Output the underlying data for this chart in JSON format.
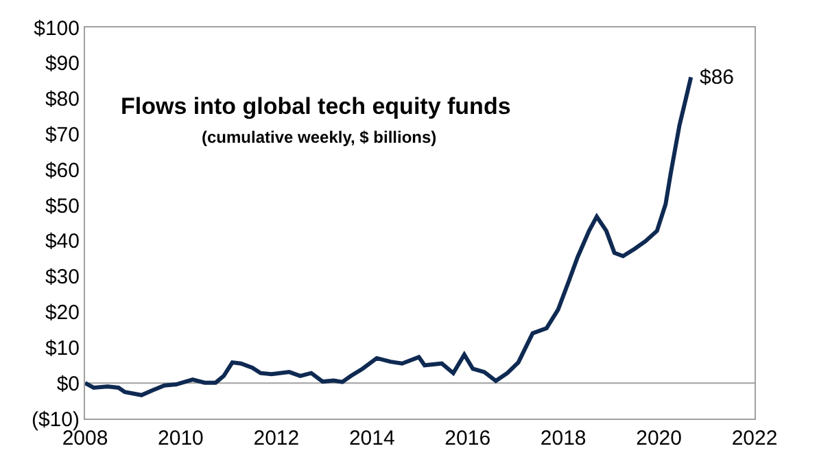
{
  "chart_data": {
    "type": "line",
    "title": "Flows into global tech equity funds",
    "subtitle": "(cumulative weekly, $ billions)",
    "series": [
      {
        "color": "#0f2a52",
        "x": [
          2008.0,
          2008.18,
          2008.47,
          2008.7,
          2008.83,
          2009.18,
          2009.42,
          2009.66,
          2009.9,
          2010.25,
          2010.5,
          2010.73,
          2010.9,
          2011.08,
          2011.26,
          2011.5,
          2011.67,
          2011.9,
          2012.27,
          2012.5,
          2012.73,
          2012.97,
          2013.2,
          2013.38,
          2013.56,
          2013.8,
          2014.1,
          2014.39,
          2014.63,
          2014.98,
          2015.1,
          2015.46,
          2015.7,
          2015.93,
          2016.11,
          2016.35,
          2016.59,
          2016.83,
          2017.06,
          2017.36,
          2017.65,
          2017.89,
          2018.12,
          2018.3,
          2018.54,
          2018.7,
          2018.9,
          2019.07,
          2019.25,
          2019.49,
          2019.72,
          2019.96,
          2020.14,
          2020.25,
          2020.43,
          2020.55,
          2020.67
        ],
        "values": [
          0,
          -1.3,
          -1,
          -1.3,
          -2.5,
          -3.4,
          -2,
          -0.7,
          -0.4,
          1,
          0.1,
          0.1,
          2,
          5.8,
          5.5,
          4.3,
          2.8,
          2.5,
          3.1,
          2,
          2.8,
          0.4,
          0.7,
          0.3,
          2,
          4,
          7,
          6,
          5.5,
          7.3,
          5,
          5.5,
          2.8,
          8,
          4,
          3.1,
          0.6,
          2.8,
          5.8,
          14,
          15.4,
          20.6,
          28.8,
          35.4,
          42.8,
          46.8,
          42.8,
          36.6,
          35.7,
          37.7,
          39.9,
          42.8,
          50.3,
          59.2,
          72.5,
          79.2,
          86
        ]
      }
    ],
    "annotations": [
      {
        "text": "$86",
        "x": 2020.67,
        "y": 86
      }
    ],
    "xlim": [
      2008,
      2022
    ],
    "xticks": [
      2008,
      2010,
      2012,
      2014,
      2016,
      2018,
      2020,
      2022
    ],
    "ylim": [
      -10,
      100
    ],
    "yticks": [
      {
        "value": -10,
        "label": "($10)"
      },
      {
        "value": 0,
        "label": "$0"
      },
      {
        "value": 10,
        "label": "$10"
      },
      {
        "value": 20,
        "label": "$20"
      },
      {
        "value": 30,
        "label": "$30"
      },
      {
        "value": 40,
        "label": "$40"
      },
      {
        "value": 50,
        "label": "$50"
      },
      {
        "value": 60,
        "label": "$60"
      },
      {
        "value": 70,
        "label": "$70"
      },
      {
        "value": 80,
        "label": "$80"
      },
      {
        "value": 90,
        "label": "$90"
      },
      {
        "value": 100,
        "label": "$100"
      }
    ],
    "ref_lines": [
      {
        "axis": "y",
        "value": 0,
        "color": "#a0a0a0"
      }
    ],
    "grid": false
  }
}
